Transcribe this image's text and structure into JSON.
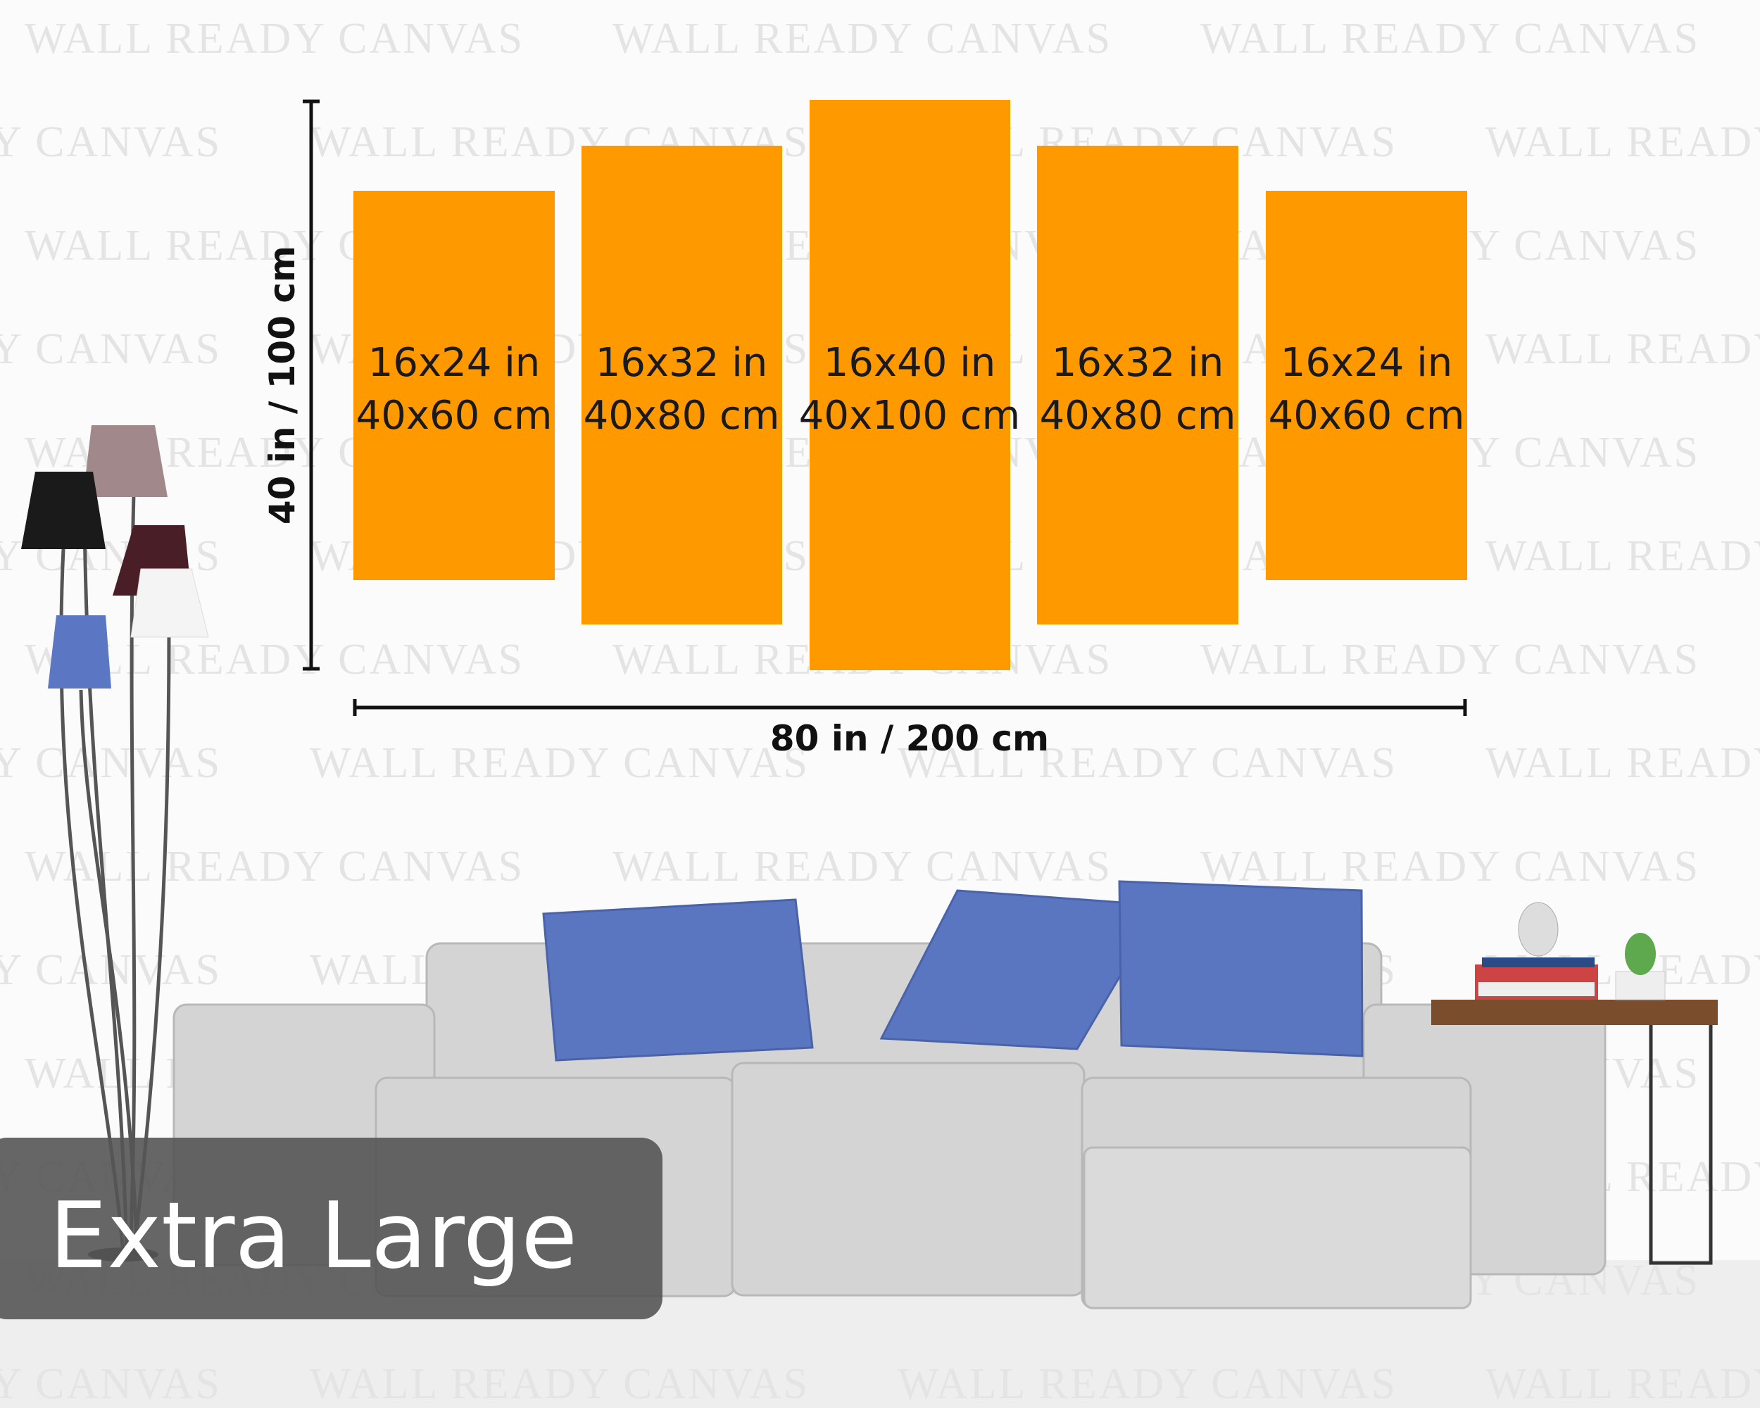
{
  "watermark": "WALL READY CANVAS",
  "panels": [
    {
      "size_in": "16x24 in",
      "size_cm": "40x60 cm"
    },
    {
      "size_in": "16x32 in",
      "size_cm": "40x80 cm"
    },
    {
      "size_in": "16x40 in",
      "size_cm": "40x100 cm"
    },
    {
      "size_in": "16x32 in",
      "size_cm": "40x80 cm"
    },
    {
      "size_in": "16x24 in",
      "size_cm": "40x60 cm"
    }
  ],
  "height_label": "40 in / 100 cm",
  "width_label": "80 in / 200 cm",
  "badge": "Extra Large"
}
